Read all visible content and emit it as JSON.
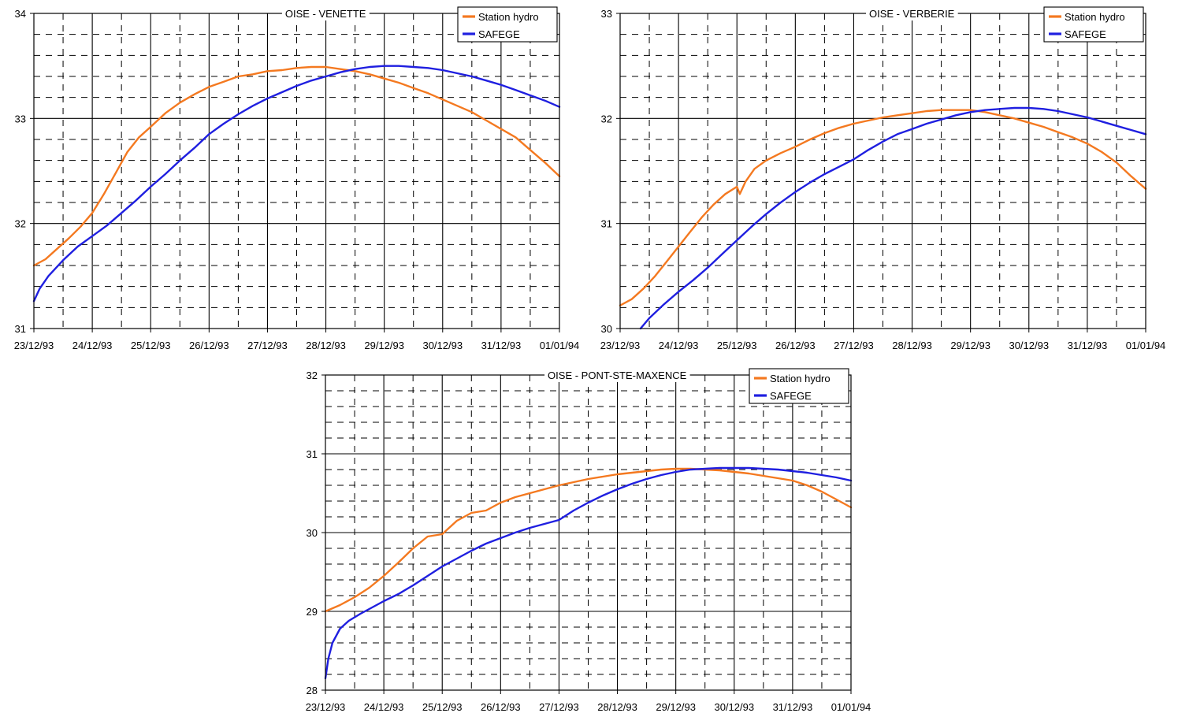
{
  "colors": {
    "station": "#F47920",
    "safege": "#1F1FE0",
    "grid": "#000000",
    "background": "#ffffff"
  },
  "chart_data": [
    {
      "type": "line",
      "title": "OISE - VENETTE",
      "xlabel": "",
      "ylabel": "",
      "categories": [
        "23/12/93",
        "24/12/93",
        "25/12/93",
        "26/12/93",
        "27/12/93",
        "28/12/93",
        "29/12/93",
        "30/12/93",
        "31/12/93",
        "01/01/94"
      ],
      "x_ticks": [
        "23/12/93",
        "24/12/93",
        "25/12/93",
        "26/12/93",
        "27/12/93",
        "28/12/93",
        "29/12/93",
        "30/12/93",
        "31/12/93",
        "01/01/94"
      ],
      "y_ticks": [
        "31",
        "32",
        "33",
        "34"
      ],
      "ylim": [
        31,
        34
      ],
      "grid": true,
      "legend": "top-right",
      "series": [
        {
          "name": "Station hydro",
          "color": "#F47920",
          "x": [
            0,
            0.2,
            0.4,
            0.6,
            0.8,
            1.0,
            1.2,
            1.4,
            1.6,
            1.8,
            2.0,
            2.25,
            2.5,
            2.75,
            3.0,
            3.25,
            3.5,
            3.75,
            4.0,
            4.25,
            4.5,
            4.75,
            5.0,
            5.25,
            5.5,
            5.75,
            6.0,
            6.25,
            6.5,
            6.75,
            7.0,
            7.25,
            7.5,
            7.75,
            8.0,
            8.25,
            8.5,
            8.75,
            9.0
          ],
          "values": [
            31.6,
            31.66,
            31.76,
            31.86,
            31.97,
            32.1,
            32.28,
            32.48,
            32.68,
            32.82,
            32.92,
            33.05,
            33.15,
            33.23,
            33.3,
            33.35,
            33.4,
            33.42,
            33.45,
            33.46,
            33.48,
            33.49,
            33.49,
            33.47,
            33.45,
            33.42,
            33.38,
            33.34,
            33.29,
            33.24,
            33.18,
            33.12,
            33.06,
            32.98,
            32.9,
            32.82,
            32.7,
            32.58,
            32.45
          ]
        },
        {
          "name": "SAFEGE",
          "color": "#1F1FE0",
          "x": [
            0,
            0.1,
            0.25,
            0.5,
            0.75,
            1.0,
            1.25,
            1.5,
            1.75,
            2.0,
            2.25,
            2.5,
            2.75,
            3.0,
            3.25,
            3.5,
            3.75,
            4.0,
            4.25,
            4.5,
            4.75,
            5.0,
            5.25,
            5.5,
            5.75,
            6.0,
            6.25,
            6.5,
            6.75,
            7.0,
            7.25,
            7.5,
            7.75,
            8.0,
            8.25,
            8.5,
            8.75,
            9.0
          ],
          "values": [
            31.26,
            31.38,
            31.5,
            31.65,
            31.78,
            31.88,
            31.98,
            32.1,
            32.22,
            32.35,
            32.47,
            32.6,
            32.72,
            32.85,
            32.95,
            33.04,
            33.12,
            33.19,
            33.25,
            33.31,
            33.36,
            33.4,
            33.44,
            33.47,
            33.49,
            33.5,
            33.5,
            33.49,
            33.48,
            33.46,
            33.43,
            33.4,
            33.36,
            33.32,
            33.27,
            33.22,
            33.17,
            33.11
          ]
        }
      ]
    },
    {
      "type": "line",
      "title": "OISE - VERBERIE",
      "xlabel": "",
      "ylabel": "",
      "categories": [
        "23/12/93",
        "24/12/93",
        "25/12/93",
        "26/12/93",
        "27/12/93",
        "28/12/93",
        "29/12/93",
        "30/12/93",
        "31/12/93",
        "01/01/94"
      ],
      "x_ticks": [
        "23/12/93",
        "24/12/93",
        "25/12/93",
        "26/12/93",
        "27/12/93",
        "28/12/93",
        "29/12/93",
        "30/12/93",
        "31/12/93",
        "01/01/94"
      ],
      "y_ticks": [
        "30",
        "31",
        "32",
        "33"
      ],
      "ylim": [
        30,
        33
      ],
      "grid": true,
      "legend": "top-right",
      "series": [
        {
          "name": "Station hydro",
          "color": "#F47920",
          "x": [
            0,
            0.2,
            0.4,
            0.6,
            0.8,
            1.0,
            1.2,
            1.4,
            1.6,
            1.8,
            2.0,
            2.05,
            2.15,
            2.3,
            2.5,
            2.75,
            3.0,
            3.25,
            3.5,
            3.75,
            4.0,
            4.25,
            4.5,
            4.75,
            5.0,
            5.25,
            5.5,
            5.75,
            6.0,
            6.25,
            6.5,
            6.75,
            7.0,
            7.25,
            7.5,
            7.75,
            8.0,
            8.25,
            8.5,
            8.75,
            9.0
          ],
          "values": [
            30.22,
            30.28,
            30.38,
            30.5,
            30.64,
            30.78,
            30.92,
            31.06,
            31.18,
            31.28,
            31.35,
            31.28,
            31.4,
            31.52,
            31.6,
            31.67,
            31.73,
            31.8,
            31.86,
            31.91,
            31.95,
            31.98,
            32.01,
            32.03,
            32.05,
            32.07,
            32.08,
            32.08,
            32.08,
            32.06,
            32.03,
            32.0,
            31.96,
            31.92,
            31.87,
            31.82,
            31.76,
            31.68,
            31.58,
            31.45,
            31.33
          ]
        },
        {
          "name": "SAFEGE",
          "color": "#1F1FE0",
          "x": [
            0.35,
            0.5,
            0.75,
            1.0,
            1.25,
            1.5,
            1.75,
            2.0,
            2.25,
            2.5,
            2.75,
            3.0,
            3.25,
            3.5,
            3.75,
            4.0,
            4.25,
            4.5,
            4.75,
            5.0,
            5.25,
            5.5,
            5.75,
            6.0,
            6.25,
            6.5,
            6.75,
            7.0,
            7.25,
            7.5,
            7.75,
            8.0,
            8.25,
            8.5,
            8.75,
            9.0
          ],
          "values": [
            30.0,
            30.1,
            30.23,
            30.35,
            30.46,
            30.58,
            30.71,
            30.84,
            30.97,
            31.09,
            31.2,
            31.3,
            31.39,
            31.47,
            31.54,
            31.61,
            31.7,
            31.78,
            31.85,
            31.9,
            31.95,
            31.99,
            32.03,
            32.06,
            32.08,
            32.09,
            32.1,
            32.1,
            32.09,
            32.07,
            32.04,
            32.01,
            31.97,
            31.93,
            31.89,
            31.85
          ]
        }
      ]
    },
    {
      "type": "line",
      "title": "OISE - PONT-STE-MAXENCE",
      "xlabel": "",
      "ylabel": "",
      "categories": [
        "23/12/93",
        "24/12/93",
        "25/12/93",
        "26/12/93",
        "27/12/93",
        "28/12/93",
        "29/12/93",
        "30/12/93",
        "31/12/93",
        "01/01/94"
      ],
      "x_ticks": [
        "23/12/93",
        "24/12/93",
        "25/12/93",
        "26/12/93",
        "27/12/93",
        "28/12/93",
        "29/12/93",
        "30/12/93",
        "31/12/93",
        "01/01/94"
      ],
      "y_ticks": [
        "28",
        "29",
        "30",
        "31",
        "32"
      ],
      "ylim": [
        28,
        32
      ],
      "grid": true,
      "legend": "top-right",
      "series": [
        {
          "name": "Station hydro",
          "color": "#F47920",
          "x": [
            0,
            0.25,
            0.5,
            0.75,
            1.0,
            1.25,
            1.5,
            1.75,
            2.0,
            2.25,
            2.5,
            2.75,
            3.0,
            3.25,
            3.5,
            3.75,
            4.0,
            4.25,
            4.5,
            4.75,
            5.0,
            5.25,
            5.5,
            5.75,
            6.0,
            6.25,
            6.5,
            6.75,
            7.0,
            7.25,
            7.5,
            7.75,
            8.0,
            8.25,
            8.5,
            8.75,
            9.0
          ],
          "values": [
            29.0,
            29.08,
            29.18,
            29.3,
            29.45,
            29.62,
            29.8,
            29.95,
            29.98,
            30.15,
            30.25,
            30.28,
            30.38,
            30.45,
            30.5,
            30.55,
            30.6,
            30.64,
            30.68,
            30.71,
            30.74,
            30.76,
            30.78,
            30.8,
            30.81,
            30.81,
            30.8,
            30.79,
            30.77,
            30.75,
            30.72,
            30.69,
            30.66,
            30.6,
            30.52,
            30.42,
            30.32
          ]
        },
        {
          "name": "SAFEGE",
          "color": "#1F1FE0",
          "x": [
            0,
            0.05,
            0.12,
            0.25,
            0.4,
            0.6,
            0.8,
            1.0,
            1.25,
            1.5,
            1.75,
            2.0,
            2.25,
            2.5,
            2.75,
            3.0,
            3.25,
            3.5,
            3.75,
            4.0,
            4.25,
            4.5,
            4.75,
            5.0,
            5.25,
            5.5,
            5.75,
            6.0,
            6.25,
            6.5,
            6.75,
            7.0,
            7.25,
            7.5,
            7.75,
            8.0,
            8.25,
            8.5,
            8.75,
            9.0
          ],
          "values": [
            28.15,
            28.4,
            28.6,
            28.78,
            28.88,
            28.97,
            29.05,
            29.13,
            29.22,
            29.33,
            29.45,
            29.57,
            29.67,
            29.77,
            29.86,
            29.93,
            30.0,
            30.06,
            30.11,
            30.16,
            30.28,
            30.38,
            30.47,
            30.55,
            30.62,
            30.68,
            30.73,
            30.77,
            30.8,
            30.81,
            30.82,
            30.82,
            30.82,
            30.81,
            30.8,
            30.78,
            30.76,
            30.73,
            30.7,
            30.66
          ]
        }
      ]
    }
  ]
}
